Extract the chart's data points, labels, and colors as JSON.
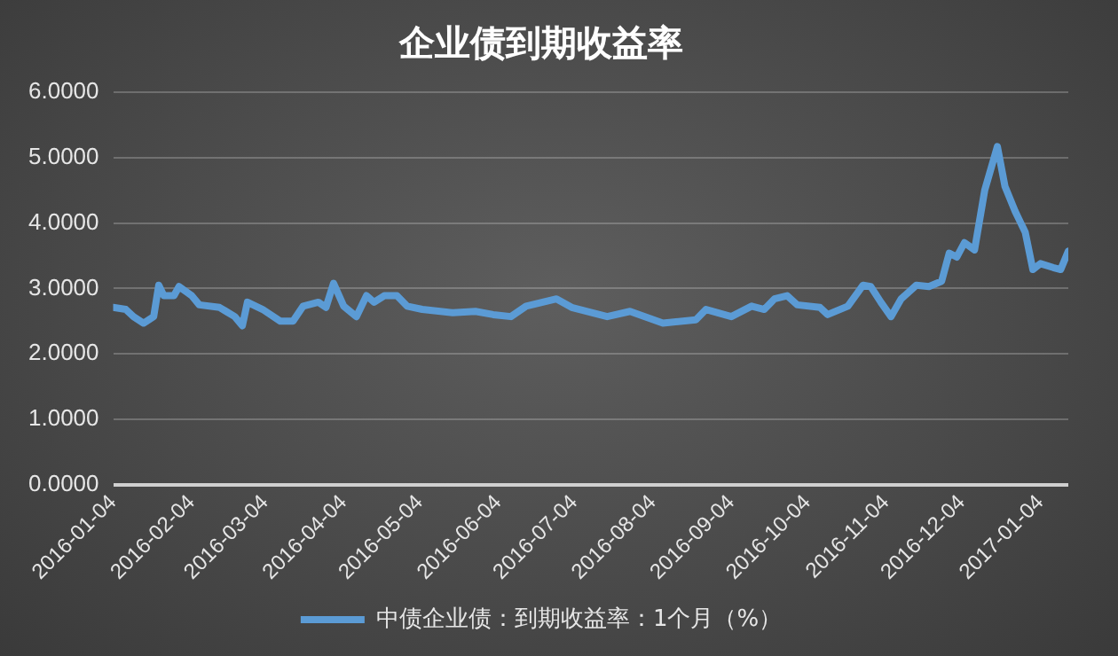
{
  "chart_data": {
    "type": "line",
    "title": "企业债到期收益率",
    "x": [
      "2016-01-04",
      "2016-01-09",
      "2016-01-12",
      "2016-01-16",
      "2016-01-20",
      "2016-01-22",
      "2016-01-24",
      "2016-01-28",
      "2016-01-30",
      "2016-02-04",
      "2016-02-07",
      "2016-02-15",
      "2016-02-21",
      "2016-02-24",
      "2016-02-26",
      "2016-03-03",
      "2016-03-10",
      "2016-03-15",
      "2016-03-19",
      "2016-03-25",
      "2016-03-28",
      "2016-03-31",
      "2016-04-04",
      "2016-04-09",
      "2016-04-13",
      "2016-04-16",
      "2016-04-20",
      "2016-04-25",
      "2016-04-29",
      "2016-05-05",
      "2016-05-17",
      "2016-05-26",
      "2016-06-02",
      "2016-06-09",
      "2016-06-15",
      "2016-06-27",
      "2016-07-03",
      "2016-07-17",
      "2016-07-26",
      "2016-08-08",
      "2016-08-21",
      "2016-08-25",
      "2016-09-04",
      "2016-09-12",
      "2016-09-17",
      "2016-09-21",
      "2016-09-26",
      "2016-09-30",
      "2016-10-09",
      "2016-10-12",
      "2016-10-20",
      "2016-10-26",
      "2016-10-29",
      "2016-11-02",
      "2016-11-06",
      "2016-11-10",
      "2016-11-16",
      "2016-11-21",
      "2016-11-26",
      "2016-11-29",
      "2016-12-02",
      "2016-12-05",
      "2016-12-09",
      "2016-12-13",
      "2016-12-15",
      "2016-12-18",
      "2016-12-21",
      "2016-12-25",
      "2016-12-27",
      "2016-12-29",
      "2017-01-01",
      "2017-01-04",
      "2017-01-09",
      "2017-01-12",
      "2017-01-15"
    ],
    "series": [
      {
        "name": "中债企业债：到期收益率：1个月（%）",
        "color": "#5b9bd5",
        "values": [
          2.71,
          2.68,
          2.57,
          2.47,
          2.57,
          3.05,
          2.89,
          2.89,
          3.03,
          2.89,
          2.75,
          2.71,
          2.57,
          2.43,
          2.79,
          2.68,
          2.5,
          2.5,
          2.73,
          2.79,
          2.71,
          3.08,
          2.73,
          2.57,
          2.89,
          2.79,
          2.89,
          2.89,
          2.73,
          2.68,
          2.63,
          2.65,
          2.6,
          2.57,
          2.73,
          2.84,
          2.71,
          2.57,
          2.65,
          2.47,
          2.52,
          2.68,
          2.57,
          2.73,
          2.68,
          2.84,
          2.89,
          2.75,
          2.71,
          2.6,
          2.73,
          3.05,
          3.03,
          2.79,
          2.57,
          2.84,
          3.05,
          3.03,
          3.11,
          3.54,
          3.48,
          3.7,
          3.59,
          4.5,
          4.77,
          5.17,
          4.56,
          4.18,
          4.02,
          3.86,
          3.29,
          3.38,
          3.32,
          3.29,
          3.57
        ]
      }
    ],
    "xlim": [
      "2016-01-04",
      "2017-01-15"
    ],
    "xticks": [
      {
        "value": "2016-01-04",
        "label": "2016-01-04"
      },
      {
        "value": "2016-02-04",
        "label": "2016-02-04"
      },
      {
        "value": "2016-03-04",
        "label": "2016-03-04"
      },
      {
        "value": "2016-04-04",
        "label": "2016-04-04"
      },
      {
        "value": "2016-05-04",
        "label": "2016-05-04"
      },
      {
        "value": "2016-06-04",
        "label": "2016-06-04"
      },
      {
        "value": "2016-07-04",
        "label": "2016-07-04"
      },
      {
        "value": "2016-08-04",
        "label": "2016-08-04"
      },
      {
        "value": "2016-09-04",
        "label": "2016-09-04"
      },
      {
        "value": "2016-10-04",
        "label": "2016-10-04"
      },
      {
        "value": "2016-11-04",
        "label": "2016-11-04"
      },
      {
        "value": "2016-12-04",
        "label": "2016-12-04"
      },
      {
        "value": "2017-01-04",
        "label": "2017-01-04"
      }
    ],
    "ylim": [
      0,
      6
    ],
    "yticks": [
      {
        "value": 0,
        "label": "0.0000"
      },
      {
        "value": 1,
        "label": "1.0000"
      },
      {
        "value": 2,
        "label": "2.0000"
      },
      {
        "value": 3,
        "label": "3.0000"
      },
      {
        "value": 4,
        "label": "4.0000"
      },
      {
        "value": 5,
        "label": "5.0000"
      },
      {
        "value": 6,
        "label": "6.0000"
      }
    ],
    "grid": "y",
    "legend": "bottom",
    "marker": "none",
    "line_style": "solid"
  }
}
